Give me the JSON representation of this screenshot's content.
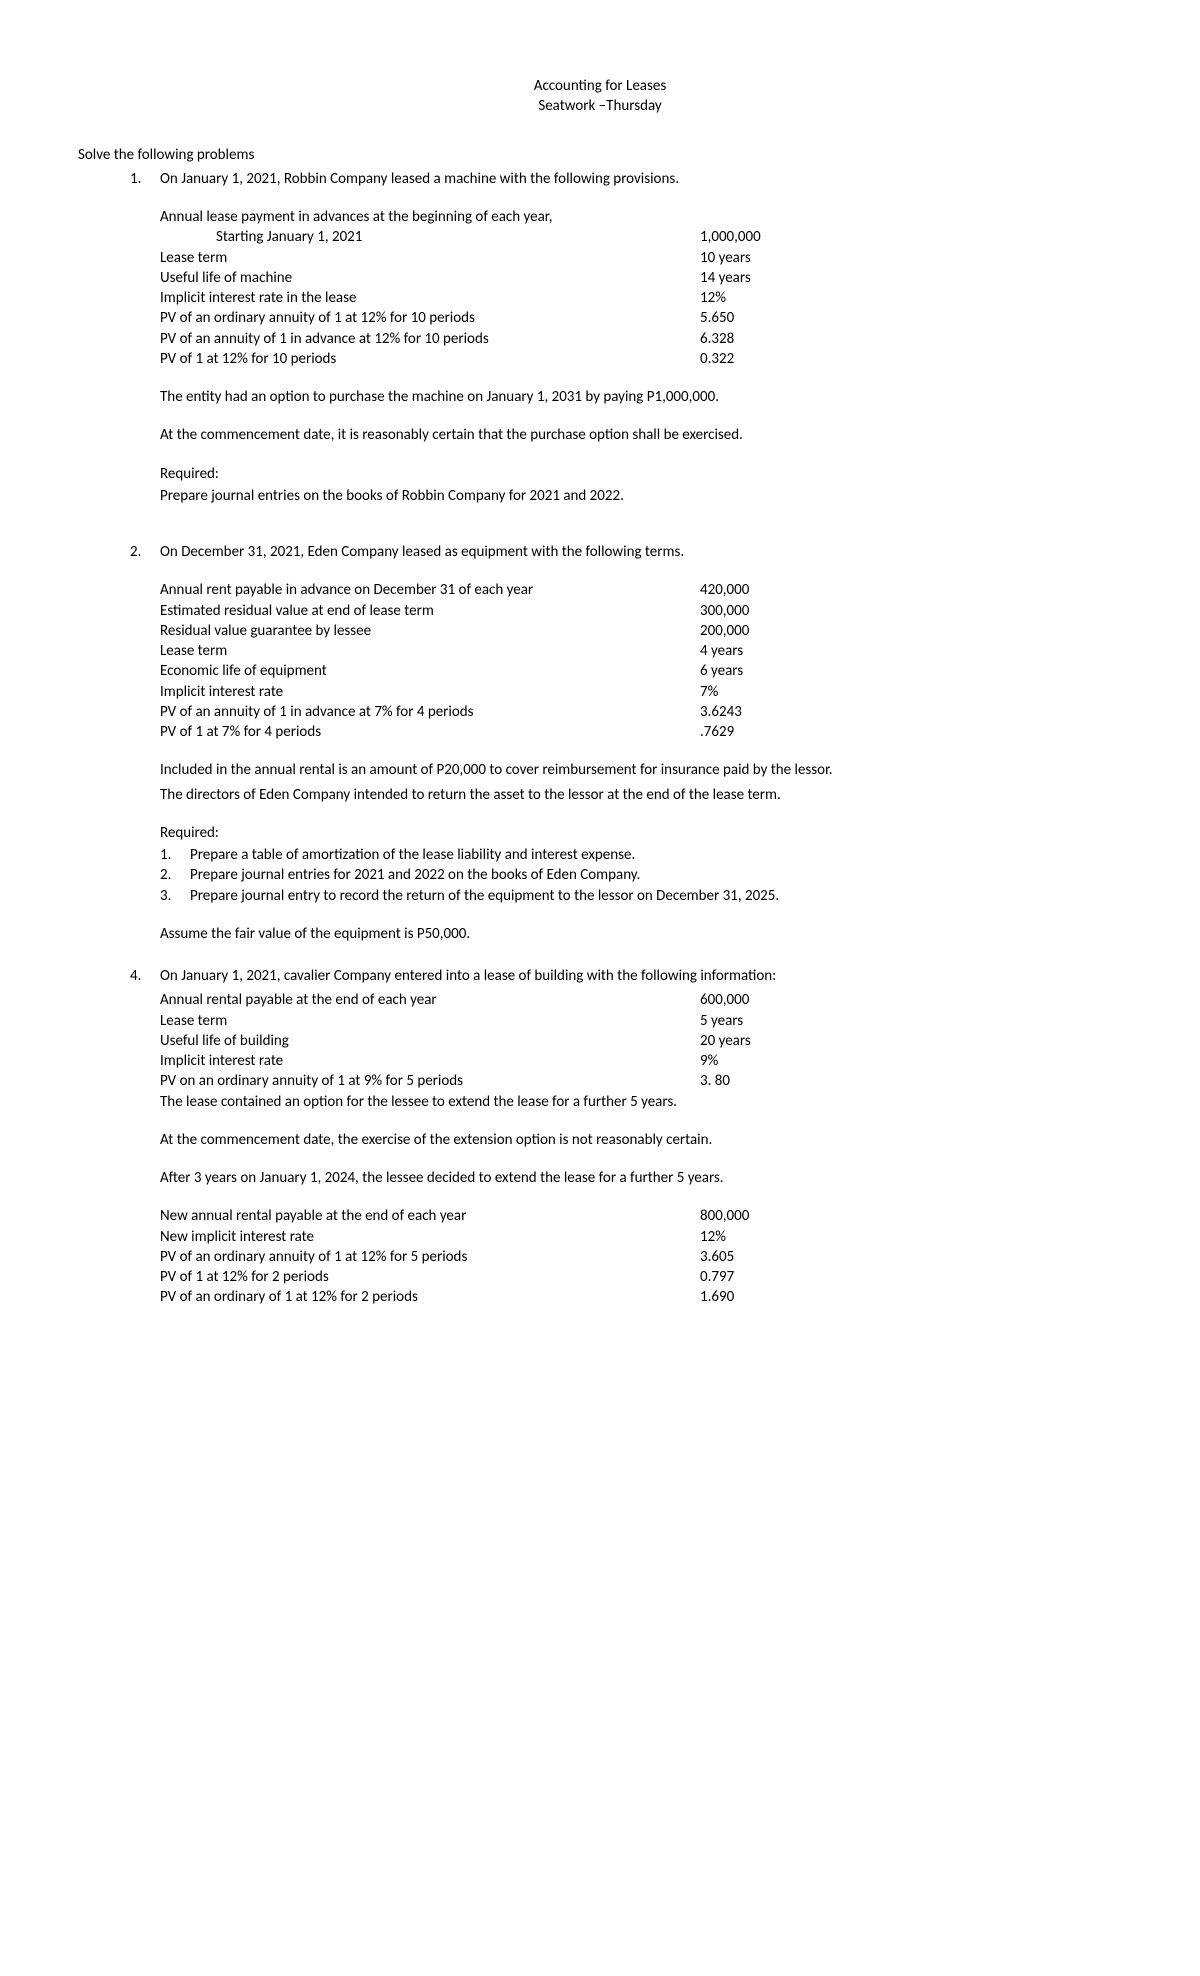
{
  "header": {
    "line1": "Accounting for Leases",
    "line2": "Seatwork –Thursday"
  },
  "intro": "Solve the following problems",
  "problems": {
    "p1": {
      "num": "1.",
      "lead": "On January 1, 2021, Robbin Company leased a machine with the following provisions.",
      "kv": [
        {
          "label": "Annual lease payment in advances at the beginning of each year,",
          "val": ""
        },
        {
          "label": "Starting January 1, 2021",
          "val": "1,000,000",
          "indent": true
        },
        {
          "label": "Lease term",
          "val": "10 years"
        },
        {
          "label": "Useful life of machine",
          "val": "14 years"
        },
        {
          "label": "Implicit interest rate in the lease",
          "val": "12%"
        },
        {
          "label": "PV of an ordinary annuity of 1 at 12% for 10 periods",
          "val": "5.650"
        },
        {
          "label": "PV of an annuity of 1 in advance at 12% for 10 periods",
          "val": "6.328"
        },
        {
          "label": "PV of 1 at 12% for 10 periods",
          "val": "0.322"
        }
      ],
      "para1": "The entity had an option to purchase the machine on January 1, 2031 by paying P1,000,000.",
      "para2": "At the commencement date, it is reasonably certain that the purchase option shall be exercised.",
      "req_label": "Required:",
      "req_text": "Prepare journal entries on the books of Robbin Company for 2021 and 2022."
    },
    "p2": {
      "num": "2.",
      "lead": "On December 31, 2021, Eden Company leased as equipment with the following terms.",
      "kv": [
        {
          "label": "Annual rent payable in advance on December 31 of each year",
          "val": "420,000"
        },
        {
          "label": "Estimated residual value at end of lease term",
          "val": "300,000"
        },
        {
          "label": "Residual value guarantee by lessee",
          "val": "200,000"
        },
        {
          "label": "Lease term",
          "val": "4 years"
        },
        {
          "label": "Economic life of equipment",
          "val": "6 years"
        },
        {
          "label": "Implicit interest rate",
          "val": "7%"
        },
        {
          "label": "PV of an annuity of 1 in advance at 7% for 4 periods",
          "val": "3.6243"
        },
        {
          "label": "PV of 1 at 7% for 4 periods",
          "val": ".7629"
        }
      ],
      "para1": "Included in the annual rental is an amount of P20,000 to cover reimbursement for insurance paid by the lessor.",
      "para2": "The directors of Eden Company intended to return the asset to the lessor at the end of the lease term.",
      "req_label": "Required:",
      "req_items": [
        {
          "n": "1.",
          "t": "Prepare a table of amortization of the lease liability and interest expense."
        },
        {
          "n": "2.",
          "t": "Prepare journal entries for 2021 and 2022 on the books of Eden Company."
        },
        {
          "n": "3.",
          "t": "Prepare journal entry to record the return of the equipment to the lessor on December 31, 2025."
        }
      ],
      "assume": "Assume the fair value of the equipment is P50,000."
    },
    "p4": {
      "num": "4.",
      "lead": "On January 1, 2021, cavalier Company entered into a lease of building with the following information:",
      "kv1": [
        {
          "label": "Annual rental payable at the end of each year",
          "val": "600,000"
        },
        {
          "label": "Lease term",
          "val": "5 years"
        },
        {
          "label": "Useful life of building",
          "val": "20 years"
        },
        {
          "label": "Implicit interest rate",
          "val": "9%"
        },
        {
          "label": "PV on an ordinary annuity of 1 at 9% for 5 periods",
          "val": "3. 80"
        }
      ],
      "note1": "The lease contained an option for the lessee to extend the lease for a further 5 years.",
      "para1": "At the commencement date, the exercise of the extension option is not reasonably certain.",
      "para2": "After 3 years on January 1, 2024, the lessee decided to extend the lease for a further 5 years.",
      "kv2": [
        {
          "label": "New annual rental payable at the end of each year",
          "val": "800,000"
        },
        {
          "label": "New implicit interest rate",
          "val": "12%"
        },
        {
          "label": "PV of an ordinary annuity of 1 at 12% for 5 periods",
          "val": "3.605"
        },
        {
          "label": "PV of 1 at 12% for 2 periods",
          "val": "0.797"
        },
        {
          "label": "PV of an ordinary of 1 at 12% for 2 periods",
          "val": "1.690"
        }
      ]
    }
  }
}
